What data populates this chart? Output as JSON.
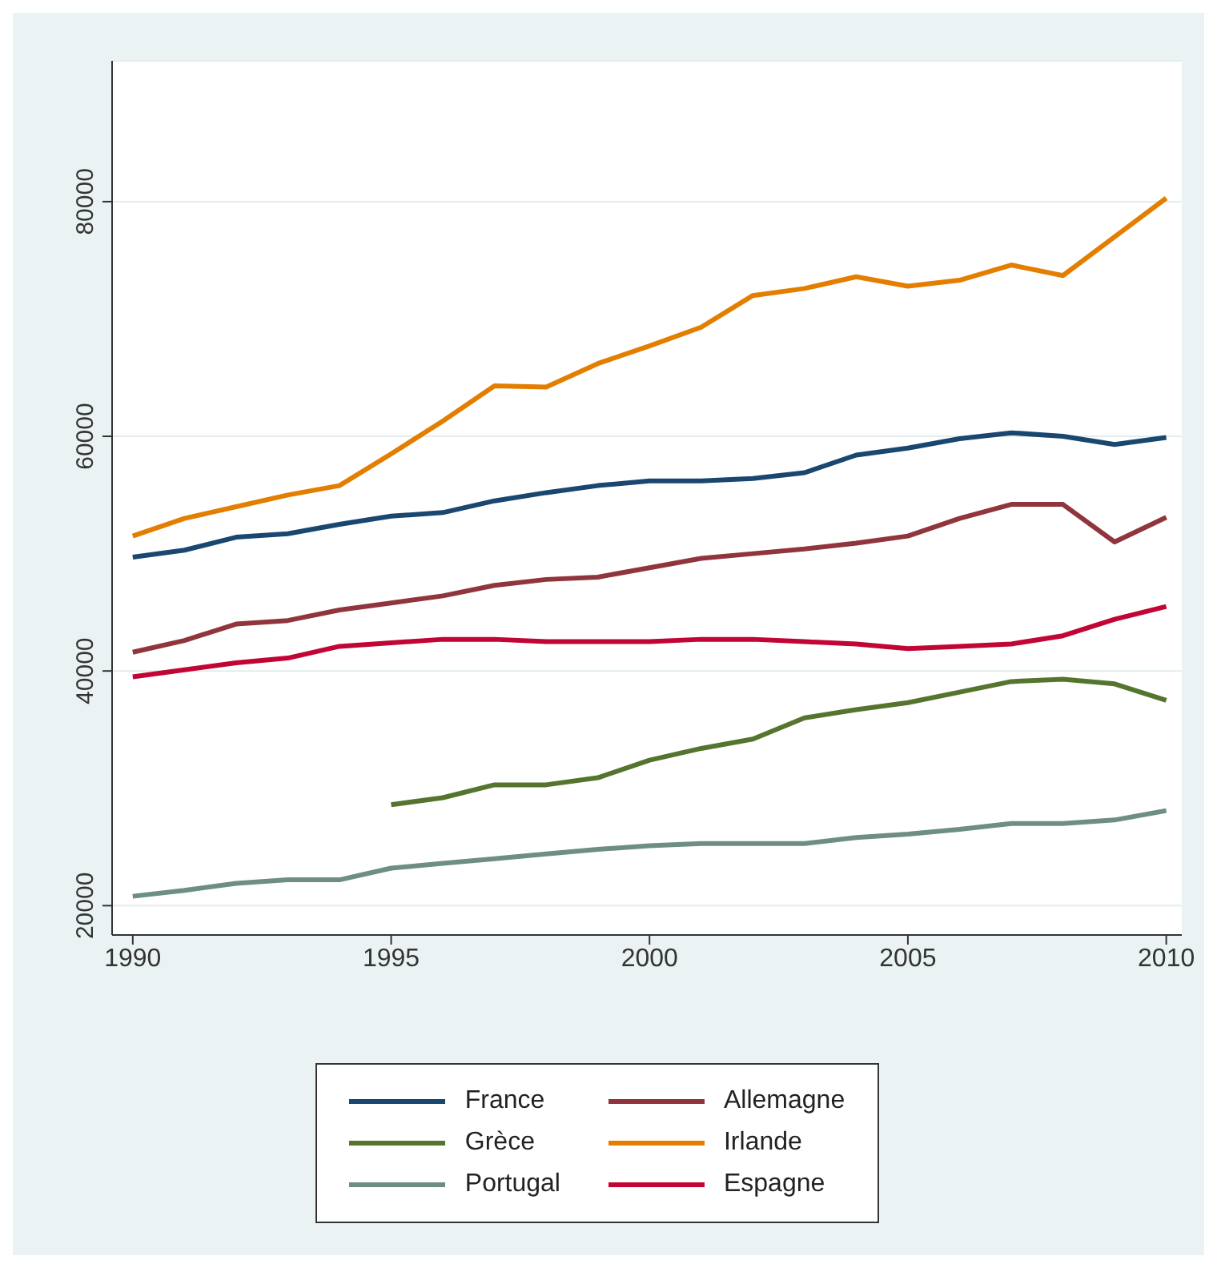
{
  "chart_data": {
    "type": "line",
    "x": [
      1990,
      1991,
      1992,
      1993,
      1994,
      1995,
      1996,
      1997,
      1998,
      1999,
      2000,
      2001,
      2002,
      2003,
      2004,
      2005,
      2006,
      2007,
      2008,
      2009,
      2010
    ],
    "series": [
      {
        "name": "France",
        "color": "#1a476f",
        "values": [
          49700,
          50300,
          51400,
          51700,
          52500,
          53200,
          53500,
          54500,
          55200,
          55800,
          56200,
          56200,
          56400,
          56900,
          58400,
          59000,
          59800,
          60300,
          60000,
          59300,
          59900
        ]
      },
      {
        "name": "Allemagne",
        "color": "#90353b",
        "values": [
          41600,
          42600,
          44000,
          44300,
          45200,
          45800,
          46400,
          47300,
          47800,
          48000,
          48800,
          49600,
          50000,
          50400,
          50900,
          51500,
          53000,
          54200,
          54200,
          51000,
          53100
        ]
      },
      {
        "name": "Grèce",
        "color": "#55752f",
        "values": [
          null,
          null,
          null,
          null,
          null,
          28600,
          29200,
          30300,
          30300,
          30900,
          32400,
          33400,
          34200,
          36000,
          36700,
          37300,
          38200,
          39100,
          39300,
          38900,
          37500
        ]
      },
      {
        "name": "Irlande",
        "color": "#e37e00",
        "values": [
          51500,
          53000,
          54000,
          55000,
          55800,
          58500,
          61300,
          64300,
          64200,
          66200,
          67700,
          69300,
          72000,
          72600,
          73600,
          72800,
          73300,
          74600,
          73700,
          77000,
          80300
        ]
      },
      {
        "name": "Portugal",
        "color": "#6e8e84",
        "values": [
          20800,
          21300,
          21900,
          22200,
          22200,
          23200,
          23600,
          24000,
          24400,
          24800,
          25100,
          25300,
          25300,
          25300,
          25800,
          26100,
          26500,
          27000,
          27000,
          27300,
          28100
        ]
      },
      {
        "name": "Espagne",
        "color": "#c10534",
        "values": [
          39500,
          40100,
          40700,
          41100,
          42100,
          42400,
          42700,
          42700,
          42500,
          42500,
          42500,
          42700,
          42700,
          42500,
          42300,
          41900,
          42100,
          42300,
          43000,
          44400,
          45500
        ]
      }
    ],
    "xlim": [
      1989.6,
      2010.3
    ],
    "xticks": [
      1990,
      1995,
      2000,
      2005,
      2010
    ],
    "ylim": [
      17500,
      92000
    ],
    "yticks": [
      20000,
      40000,
      60000,
      80000
    ],
    "grid": "y",
    "legend": "bottom",
    "marker": "none",
    "line_style": "solid"
  }
}
